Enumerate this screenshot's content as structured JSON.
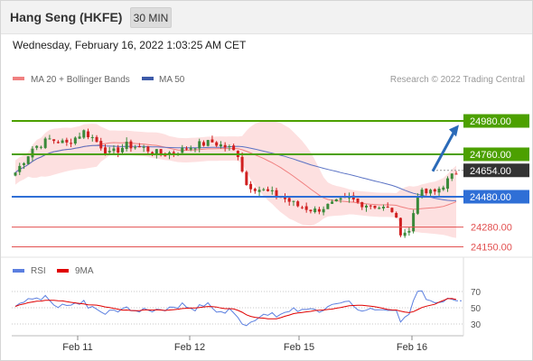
{
  "header": {
    "title": "Hang Seng (HKFE)",
    "timeframe": "30 MIN",
    "datetime": "Wednesday, February 16, 2022 1:03:25 AM CET"
  },
  "legend": {
    "ma20": "MA 20 + Bollinger Bands",
    "ma50": "MA 50",
    "credit": "Research © 2022 Trading Central",
    "rsi": "RSI",
    "rsi9": "9MA"
  },
  "colors": {
    "resistance": "#4ca000",
    "support": "#2f6fd6",
    "minor": "#e25050",
    "current": "#333333",
    "bull": "#3a8a3a",
    "bear": "#d02020",
    "band": "#fde0e0",
    "ma20": "#f08080",
    "ma50": "#5a72c4",
    "rsi": "#5b7fe0",
    "rsi_ma": "#e00000",
    "arrow": "#2a6ab8"
  },
  "chart_data": [
    {
      "type": "candlestick",
      "price_range": [
        24100,
        25150
      ],
      "x_ticks": [
        "Feb 11",
        "Feb 12",
        "Feb 15",
        "Feb 16"
      ],
      "levels": [
        {
          "value": 24980.0,
          "label": "24980.00",
          "kind": "resistance"
        },
        {
          "value": 24760.0,
          "label": "24760.00",
          "kind": "resistance"
        },
        {
          "value": 24654.0,
          "label": "24654.00",
          "kind": "current"
        },
        {
          "value": 24480.0,
          "label": "24480.00",
          "kind": "support"
        },
        {
          "value": 24280.0,
          "label": "24280.00",
          "kind": "minor"
        },
        {
          "value": 24150.0,
          "label": "24150.00",
          "kind": "minor"
        }
      ],
      "target_arrow": {
        "from": 24654,
        "to": 24960
      }
    },
    {
      "type": "line",
      "series": [
        {
          "name": "RSI"
        },
        {
          "name": "9MA"
        }
      ],
      "y_ticks": [
        "70",
        "50",
        "30"
      ],
      "ylim": [
        15,
        85
      ]
    }
  ]
}
